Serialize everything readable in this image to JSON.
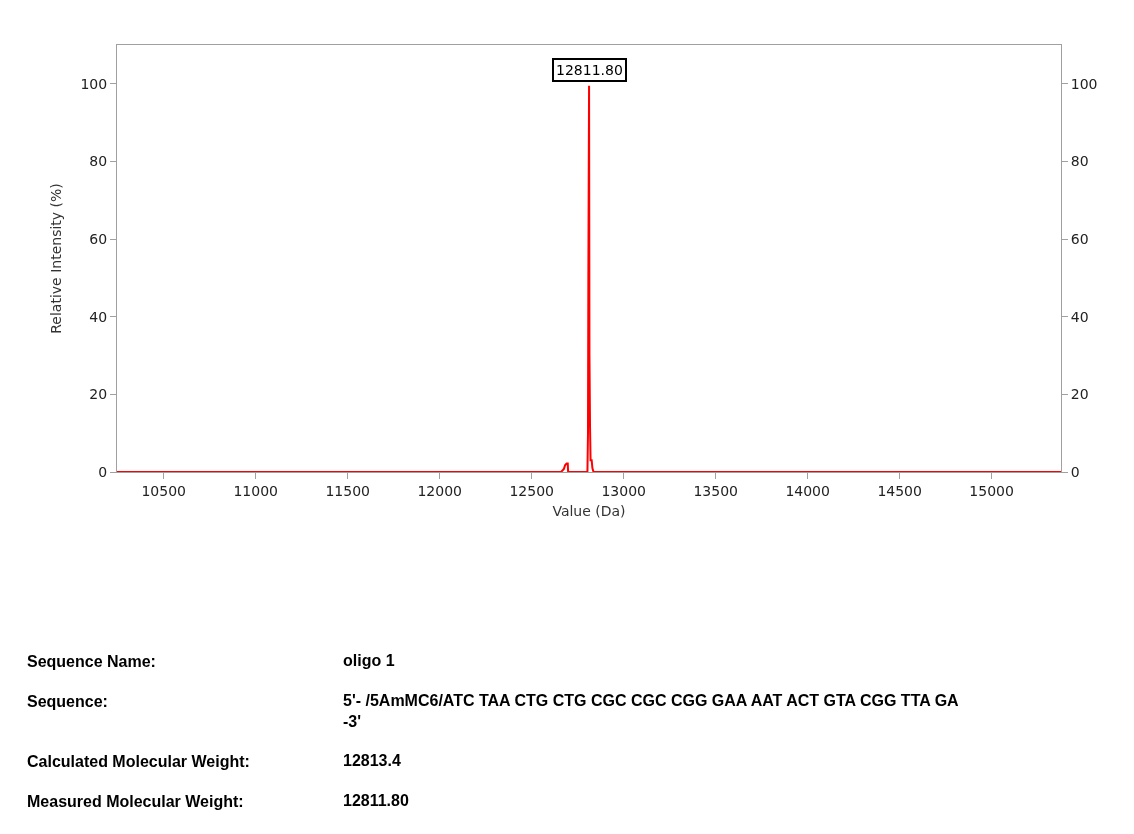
{
  "chart_data": {
    "type": "line",
    "xlabel": "Value (Da)",
    "ylabel": "Relative Intensity (%)",
    "x": [
      10246,
      12660,
      12675,
      12682,
      12690,
      12696,
      12698,
      12803,
      12806,
      12808,
      12811.8,
      12814,
      12817,
      12820,
      12826,
      12830,
      12836,
      15377
    ],
    "series": [
      {
        "color": "#ff0000",
        "values": [
          0,
          0,
          0.8,
          1.8,
          2.2,
          2.2,
          0,
          0,
          10,
          50,
          99.5,
          30,
          12,
          3,
          3,
          1,
          0,
          0
        ]
      }
    ],
    "xlim": [
      10246,
      15377
    ],
    "xticks": [
      10500,
      11000,
      11500,
      12000,
      12500,
      13000,
      13500,
      14000,
      14500,
      15000
    ],
    "ylim": [
      0,
      110
    ],
    "yticks": [
      0,
      20,
      40,
      60,
      80,
      100
    ],
    "y2lim": [
      0,
      110
    ],
    "y2ticks": [
      0,
      20,
      40,
      60,
      80,
      100
    ],
    "marker": "none",
    "line_style": "solid",
    "annotations": [
      {
        "text": "12811.80",
        "x": 12811.8,
        "y": 99.5
      },
      "Sequence Name:",
      "oligo 1",
      "Sequence:",
      "5'- /5AmMC6/ATC TAA CTG CTG CGC CGC CGG GAA AAT ACT GTA CGG TTA GA -3'",
      "Calculated Molecular Weight:",
      "12813.4",
      "Measured Molecular Weight:",
      "12811.80"
    ]
  }
}
